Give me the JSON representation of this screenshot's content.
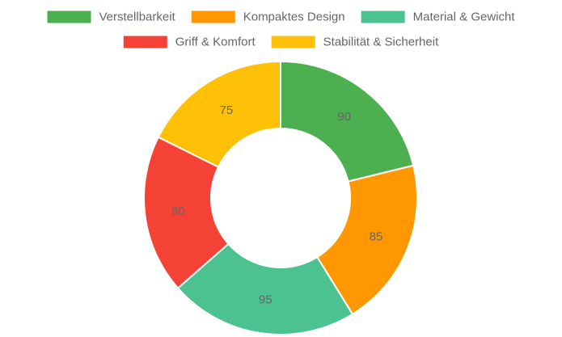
{
  "chart_data": {
    "type": "pie",
    "variant": "doughnut",
    "categories": [
      "Verstellbarkeit",
      "Kompaktes Design",
      "Material & Gewicht",
      "Griff & Komfort",
      "Stabilität & Sicherheit"
    ],
    "values": [
      90,
      85,
      95,
      80,
      75
    ],
    "colors": [
      "#4caf50",
      "#ff9800",
      "#4dc291",
      "#f44336",
      "#ffc107"
    ],
    "legend_position": "top",
    "data_labels": true
  }
}
